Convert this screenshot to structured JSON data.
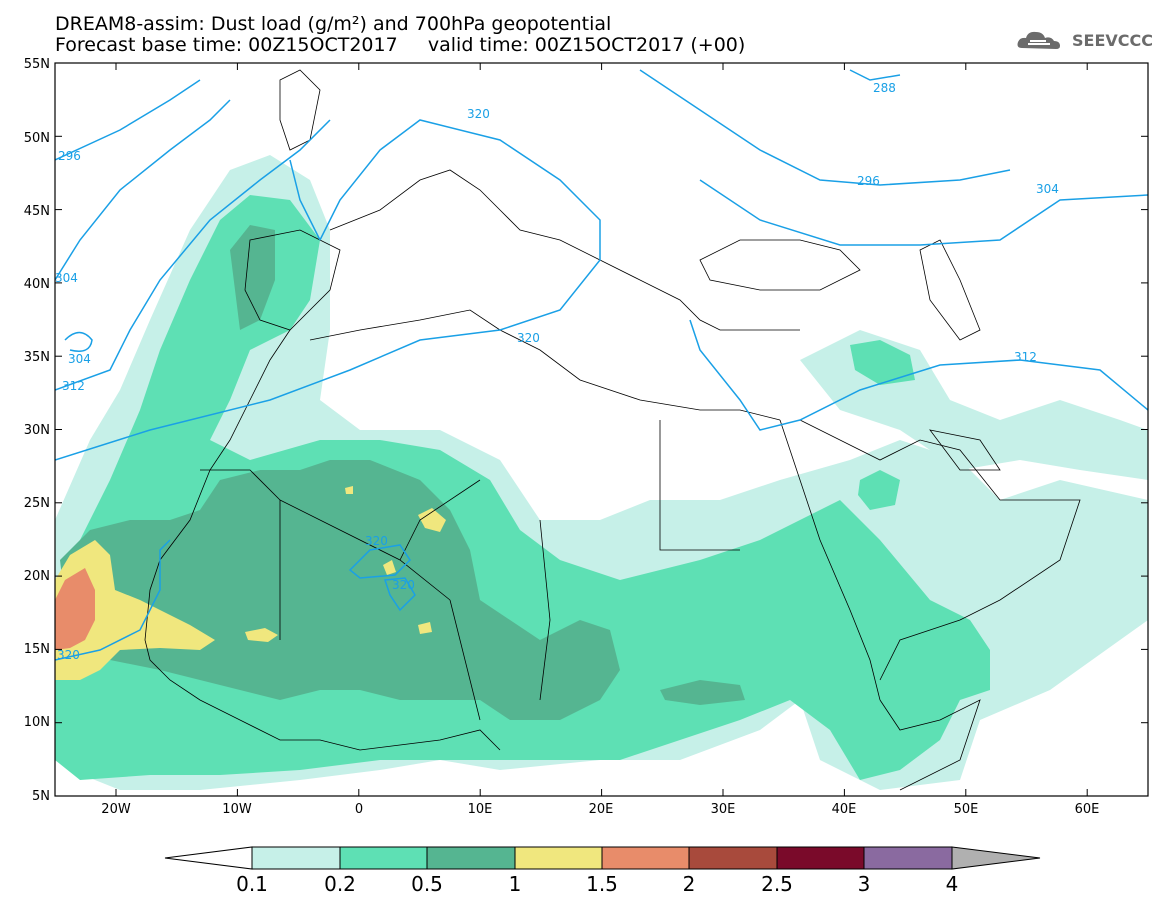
{
  "title": {
    "line1": "DREAM8-assim: Dust load (g/m²) and 700hPa geopotential",
    "line2": "Forecast base time: 00Z15OCT2017     valid time: 00Z15OCT2017 (+00)"
  },
  "logo": {
    "text": "SEEVCCC",
    "icon": "cloud-icon"
  },
  "axes": {
    "lat_labels": [
      "55N",
      "50N",
      "45N",
      "40N",
      "35N",
      "30N",
      "25N",
      "20N",
      "15N",
      "10N",
      "5N"
    ],
    "lon_labels": [
      "20W",
      "10W",
      "0",
      "10E",
      "20E",
      "30E",
      "40E",
      "50E",
      "60E"
    ]
  },
  "contour_labels": [
    "288",
    "320",
    "296",
    "296",
    "304",
    "304",
    "312",
    "304",
    "312",
    "320",
    "320",
    "320",
    "320"
  ],
  "colorbar": {
    "ticks": [
      "0.1",
      "0.2",
      "0.5",
      "1",
      "1.5",
      "2",
      "2.5",
      "3",
      "4"
    ],
    "colors": [
      "#c6f0e8",
      "#5ee0b4",
      "#55b591",
      "#f0e77e",
      "#e88c6a",
      "#a84a3c",
      "#7a0a2a",
      "#8a6aa0",
      "#b0b0b0"
    ]
  },
  "colors": {
    "contour": "#1aa0e6",
    "level_01": "#c6f0e8",
    "level_02": "#5ee0b4",
    "level_05": "#55b591",
    "level_1": "#f0e77e",
    "level_15": "#e88c6a"
  }
}
